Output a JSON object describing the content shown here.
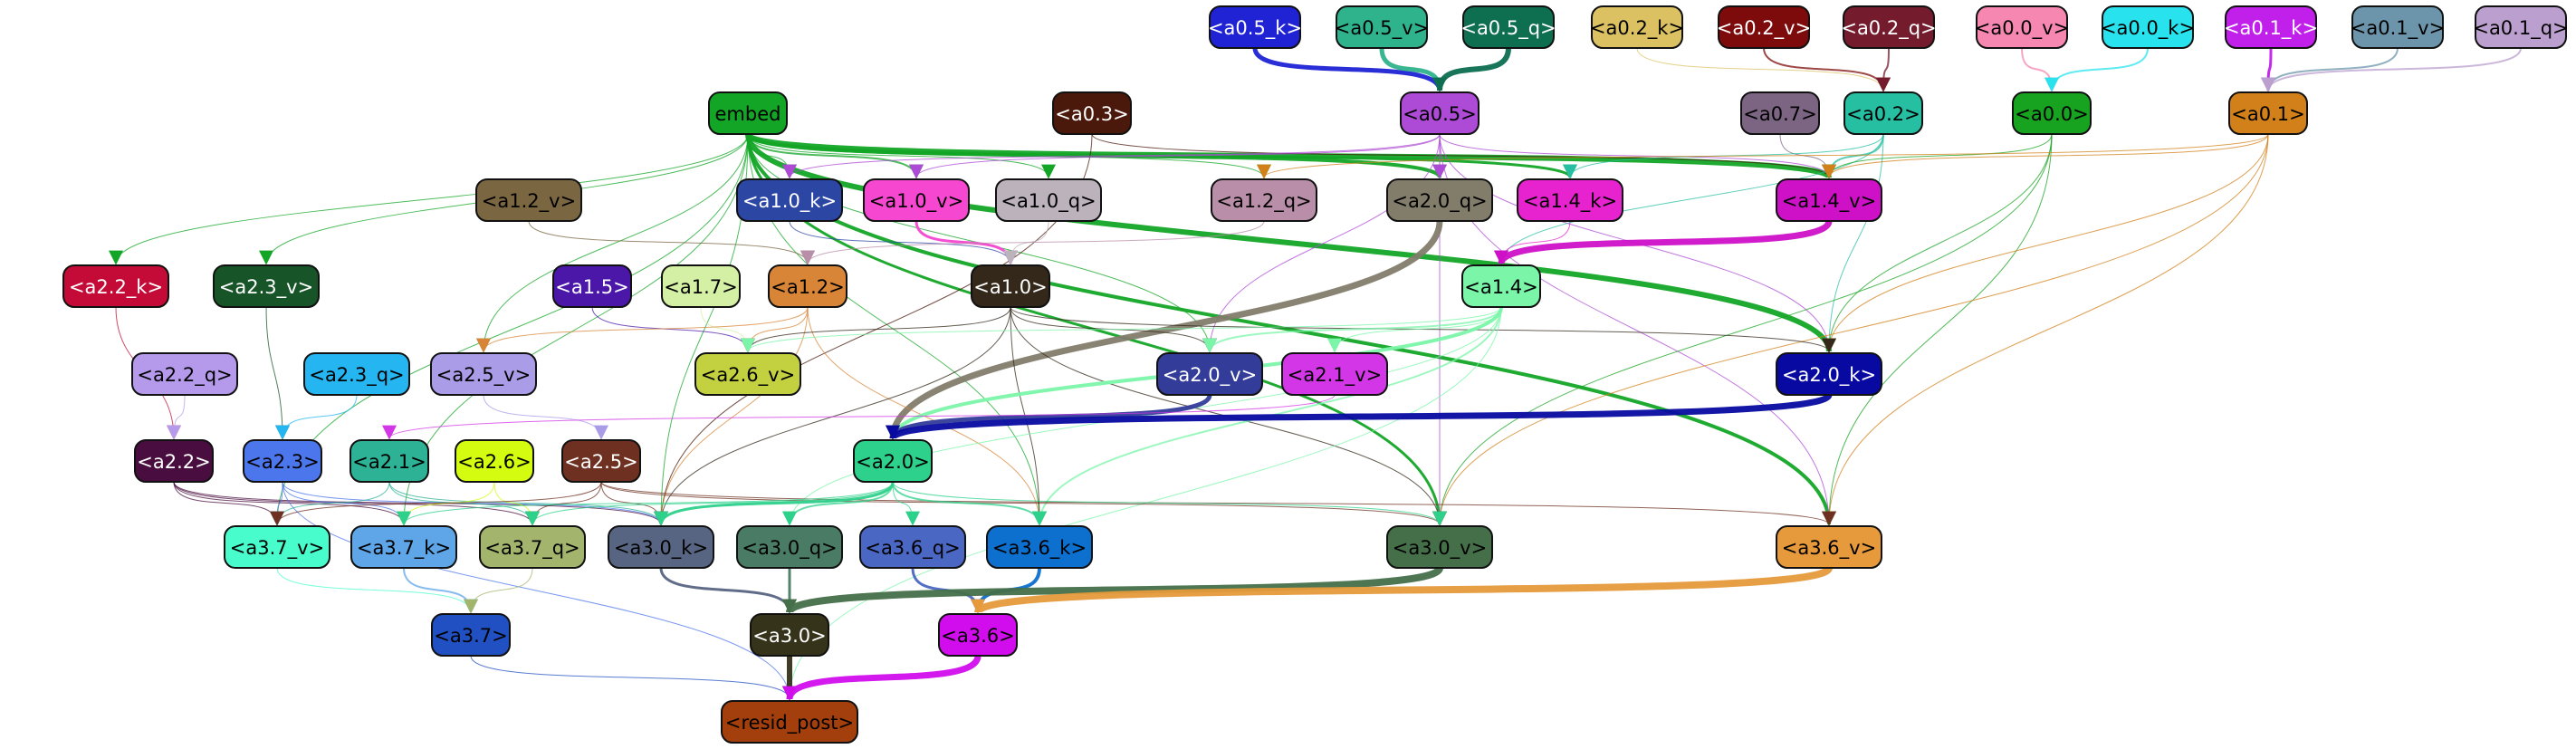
{
  "nodes": [
    {
      "id": "a0_5_k",
      "label": "<a0.5_k>",
      "fill": "#1f23d4",
      "text": "#ffffff"
    },
    {
      "id": "a0_5_v",
      "label": "<a0.5_v>",
      "fill": "#2fb38c",
      "text": "#000000"
    },
    {
      "id": "a0_5_q",
      "label": "<a0.5_q>",
      "fill": "#0d6e50",
      "text": "#ffffff"
    },
    {
      "id": "a0_2_k",
      "label": "<a0.2_k>",
      "fill": "#dcc163",
      "text": "#000000"
    },
    {
      "id": "a0_2_v",
      "label": "<a0.2_v>",
      "fill": "#7e0b0b",
      "text": "#ffffff"
    },
    {
      "id": "a0_2_q",
      "label": "<a0.2_q>",
      "fill": "#741c2e",
      "text": "#ffffff"
    },
    {
      "id": "a0_0_v",
      "label": "<a0.0_v>",
      "fill": "#f587b1",
      "text": "#000000"
    },
    {
      "id": "a0_0_k",
      "label": "<a0.0_k>",
      "fill": "#28e3ee",
      "text": "#000000"
    },
    {
      "id": "a0_1_k",
      "label": "<a0.1_k>",
      "fill": "#c120ea",
      "text": "#ffffff"
    },
    {
      "id": "a0_1_v",
      "label": "<a0.1_v>",
      "fill": "#6c95ab",
      "text": "#000000"
    },
    {
      "id": "a0_1_q",
      "label": "<a0.1_q>",
      "fill": "#bb9fcf",
      "text": "#000000"
    },
    {
      "id": "embed",
      "label": "embed",
      "fill": "#13a526",
      "text": "#000000"
    },
    {
      "id": "a0_3",
      "label": "<a0.3>",
      "fill": "#4a190b",
      "text": "#ffffff"
    },
    {
      "id": "a0_5",
      "label": "<a0.5>",
      "fill": "#ad4ad6",
      "text": "#000000"
    },
    {
      "id": "a0_7",
      "label": "<a0.7>",
      "fill": "#7b6583",
      "text": "#000000"
    },
    {
      "id": "a0_2",
      "label": "<a0.2>",
      "fill": "#26bfa2",
      "text": "#000000"
    },
    {
      "id": "a0_0",
      "label": "<a0.0>",
      "fill": "#17a320",
      "text": "#000000"
    },
    {
      "id": "a0_1",
      "label": "<a0.1>",
      "fill": "#d28019",
      "text": "#000000"
    },
    {
      "id": "a1_2_v",
      "label": "<a1.2_v>",
      "fill": "#7a6641",
      "text": "#000000"
    },
    {
      "id": "a1_0_k",
      "label": "<a1.0_k>",
      "fill": "#2c46a4",
      "text": "#ffffff"
    },
    {
      "id": "a1_0_v",
      "label": "<a1.0_v>",
      "fill": "#f647d0",
      "text": "#000000"
    },
    {
      "id": "a1_0_q",
      "label": "<a1.0_q>",
      "fill": "#bbb2bb",
      "text": "#000000"
    },
    {
      "id": "a1_2_q",
      "label": "<a1.2_q>",
      "fill": "#b98ea8",
      "text": "#000000"
    },
    {
      "id": "a2_0_q",
      "label": "<a2.0_q>",
      "fill": "#827c6a",
      "text": "#000000"
    },
    {
      "id": "a1_4_k",
      "label": "<a1.4_k>",
      "fill": "#e723cf",
      "text": "#000000"
    },
    {
      "id": "a1_4_v",
      "label": "<a1.4_v>",
      "fill": "#ce10c7",
      "text": "#000000"
    },
    {
      "id": "a2_2_k",
      "label": "<a2.2_k>",
      "fill": "#c40b37",
      "text": "#ffffff"
    },
    {
      "id": "a2_3_v",
      "label": "<a2.3_v>",
      "fill": "#175427",
      "text": "#ffffff"
    },
    {
      "id": "a1_5",
      "label": "<a1.5>",
      "fill": "#4b17a9",
      "text": "#ffffff"
    },
    {
      "id": "a1_7",
      "label": "<a1.7>",
      "fill": "#d4f0a4",
      "text": "#000000"
    },
    {
      "id": "a1_2",
      "label": "<a1.2>",
      "fill": "#d88538",
      "text": "#000000"
    },
    {
      "id": "a1_0",
      "label": "<a1.0>",
      "fill": "#33281a",
      "text": "#ffffff"
    },
    {
      "id": "a1_4",
      "label": "<a1.4>",
      "fill": "#7bf6a9",
      "text": "#000000"
    },
    {
      "id": "a2_2_q",
      "label": "<a2.2_q>",
      "fill": "#b59aeb",
      "text": "#000000"
    },
    {
      "id": "a2_3_q",
      "label": "<a2.3_q>",
      "fill": "#25b5f1",
      "text": "#000000"
    },
    {
      "id": "a2_5_v",
      "label": "<a2.5_v>",
      "fill": "#aa9ce7",
      "text": "#000000"
    },
    {
      "id": "a2_6_v",
      "label": "<a2.6_v>",
      "fill": "#c3d03f",
      "text": "#000000"
    },
    {
      "id": "a2_0_v",
      "label": "<a2.0_v>",
      "fill": "#333c99",
      "text": "#ffffff"
    },
    {
      "id": "a2_1_v",
      "label": "<a2.1_v>",
      "fill": "#d236e6",
      "text": "#000000"
    },
    {
      "id": "a2_0_k",
      "label": "<a2.0_k>",
      "fill": "#0709a1",
      "text": "#ffffff"
    },
    {
      "id": "a2_2",
      "label": "<a2.2>",
      "fill": "#4a0d3f",
      "text": "#ffffff"
    },
    {
      "id": "a2_3",
      "label": "<a2.3>",
      "fill": "#4c76ec",
      "text": "#000000"
    },
    {
      "id": "a2_1",
      "label": "<a2.1>",
      "fill": "#2db295",
      "text": "#000000"
    },
    {
      "id": "a2_6",
      "label": "<a2.6>",
      "fill": "#d4fc10",
      "text": "#000000"
    },
    {
      "id": "a2_5",
      "label": "<a2.5>",
      "fill": "#6e3020",
      "text": "#ffffff"
    },
    {
      "id": "a2_0",
      "label": "<a2.0>",
      "fill": "#2dd18b",
      "text": "#000000"
    },
    {
      "id": "a3_7_v",
      "label": "<a3.7_v>",
      "fill": "#48fccb",
      "text": "#000000"
    },
    {
      "id": "a3_7_k",
      "label": "<a3.7_k>",
      "fill": "#5ea6e8",
      "text": "#000000"
    },
    {
      "id": "a3_7_q",
      "label": "<a3.7_q>",
      "fill": "#a3b56c",
      "text": "#000000"
    },
    {
      "id": "a3_0_k",
      "label": "<a3.0_k>",
      "fill": "#586582",
      "text": "#000000"
    },
    {
      "id": "a3_0_q",
      "label": "<a3.0_q>",
      "fill": "#4a7c65",
      "text": "#000000"
    },
    {
      "id": "a3_6_q",
      "label": "<a3.6_q>",
      "fill": "#4a67c3",
      "text": "#000000"
    },
    {
      "id": "a3_6_k",
      "label": "<a3.6_k>",
      "fill": "#0d6fce",
      "text": "#000000"
    },
    {
      "id": "a3_0_v",
      "label": "<a3.0_v>",
      "fill": "#456f49",
      "text": "#000000"
    },
    {
      "id": "a3_6_v",
      "label": "<a3.6_v>",
      "fill": "#e69a3b",
      "text": "#000000"
    },
    {
      "id": "a3_7",
      "label": "<a3.7>",
      "fill": "#2050c2",
      "text": "#000000"
    },
    {
      "id": "a3_0",
      "label": "<a3.0>",
      "fill": "#36331b",
      "text": "#ffffff"
    },
    {
      "id": "a3_6",
      "label": "<a3.6>",
      "fill": "#d20ded",
      "text": "#000000"
    },
    {
      "id": "resid_post",
      "label": "<resid_post>",
      "fill": "#a33f0c",
      "text": "#000000"
    }
  ],
  "edges": [
    {
      "from": "a0_5_k",
      "to": "a0_5",
      "color": "#1f23d4",
      "weight": 5
    },
    {
      "from": "a0_5_v",
      "to": "a0_5",
      "color": "#2fb38c",
      "weight": 5
    },
    {
      "from": "a0_5_q",
      "to": "a0_5",
      "color": "#0d6e50",
      "weight": 6
    },
    {
      "from": "a0_2_k",
      "to": "a0_2",
      "color": "#dcc163",
      "weight": 1
    },
    {
      "from": "a0_2_v",
      "to": "a0_2",
      "color": "#7e0b0b",
      "weight": 2
    },
    {
      "from": "a0_2_q",
      "to": "a0_2",
      "color": "#741c2e",
      "weight": 2
    },
    {
      "from": "a0_0_v",
      "to": "a0_0",
      "color": "#f587b1",
      "weight": 2
    },
    {
      "from": "a0_0_k",
      "to": "a0_0",
      "color": "#28e3ee",
      "weight": 2
    },
    {
      "from": "a0_1_k",
      "to": "a0_1",
      "color": "#c120ea",
      "weight": 3
    },
    {
      "from": "a0_1_v",
      "to": "a0_1",
      "color": "#6c95ab",
      "weight": 2
    },
    {
      "from": "a0_1_q",
      "to": "a0_1",
      "color": "#bb9fcf",
      "weight": 2
    },
    {
      "from": "embed",
      "to": "a1_4_v",
      "color": "#13a526",
      "weight": 6
    },
    {
      "from": "embed",
      "to": "a2_0_k",
      "color": "#13a526",
      "weight": 6
    },
    {
      "from": "embed",
      "to": "a2_0_q",
      "color": "#13a526",
      "weight": 4
    },
    {
      "from": "embed",
      "to": "a1_4_k",
      "color": "#13a526",
      "weight": 3
    },
    {
      "from": "embed",
      "to": "a3_6_v",
      "color": "#13a526",
      "weight": 4
    },
    {
      "from": "embed",
      "to": "a3_0_v",
      "color": "#13a526",
      "weight": 3
    },
    {
      "from": "embed",
      "to": "a1_0_k",
      "color": "#13a526",
      "weight": 1
    },
    {
      "from": "embed",
      "to": "a1_0_v",
      "color": "#13a526",
      "weight": 2
    },
    {
      "from": "embed",
      "to": "a1_0_q",
      "color": "#13a526",
      "weight": 1
    },
    {
      "from": "embed",
      "to": "a1_2_q",
      "color": "#13a526",
      "weight": 1
    },
    {
      "from": "embed",
      "to": "a2_2_k",
      "color": "#13a526",
      "weight": 1
    },
    {
      "from": "embed",
      "to": "a2_3_v",
      "color": "#13a526",
      "weight": 1
    },
    {
      "from": "embed",
      "to": "a2_5_v",
      "color": "#13a526",
      "weight": 1
    },
    {
      "from": "embed",
      "to": "a3_7_v",
      "color": "#13a526",
      "weight": 1
    },
    {
      "from": "embed",
      "to": "a3_7_k",
      "color": "#13a526",
      "weight": 1
    },
    {
      "from": "embed",
      "to": "a3_0_k",
      "color": "#13a526",
      "weight": 1
    },
    {
      "from": "embed",
      "to": "a3_6_k",
      "color": "#13a526",
      "weight": 1
    },
    {
      "from": "embed",
      "to": "a2_0_v",
      "color": "#13a526",
      "weight": 1
    },
    {
      "from": "a0_3",
      "to": "a1_4_v",
      "color": "#4a190b",
      "weight": 1
    },
    {
      "from": "a0_3",
      "to": "a3_0_k",
      "color": "#4a190b",
      "weight": 1
    },
    {
      "from": "a0_5",
      "to": "a1_4_v",
      "color": "#ad4ad6",
      "weight": 1
    },
    {
      "from": "a0_5",
      "to": "a2_0_k",
      "color": "#ad4ad6",
      "weight": 1
    },
    {
      "from": "a0_5",
      "to": "a1_0_v",
      "color": "#ad4ad6",
      "weight": 1
    },
    {
      "from": "a0_5",
      "to": "a1_0_k",
      "color": "#ad4ad6",
      "weight": 1
    },
    {
      "from": "a0_5",
      "to": "a2_0_q",
      "color": "#ad4ad6",
      "weight": 1
    },
    {
      "from": "a0_5",
      "to": "a2_0_v",
      "color": "#ad4ad6",
      "weight": 1
    },
    {
      "from": "a0_5",
      "to": "a3_0_v",
      "color": "#ad4ad6",
      "weight": 1
    },
    {
      "from": "a0_5",
      "to": "a3_6_v",
      "color": "#ad4ad6",
      "weight": 1
    },
    {
      "from": "a0_7",
      "to": "a1_4_v",
      "color": "#7b6583",
      "weight": 1
    },
    {
      "from": "a0_2",
      "to": "a1_4_v",
      "color": "#26bfa2",
      "weight": 2
    },
    {
      "from": "a0_2",
      "to": "a1_4_k",
      "color": "#26bfa2",
      "weight": 1
    },
    {
      "from": "a0_2",
      "to": "a2_0_k",
      "color": "#26bfa2",
      "weight": 1
    },
    {
      "from": "a0_2",
      "to": "a1_4",
      "color": "#26bfa2",
      "weight": 1
    },
    {
      "from": "a0_0",
      "to": "a1_4_v",
      "color": "#17a320",
      "weight": 1
    },
    {
      "from": "a0_0",
      "to": "a2_0_k",
      "color": "#17a320",
      "weight": 1
    },
    {
      "from": "a0_0",
      "to": "a3_6_v",
      "color": "#17a320",
      "weight": 1
    },
    {
      "from": "a0_0",
      "to": "a3_0_v",
      "color": "#17a320",
      "weight": 1
    },
    {
      "from": "a0_1",
      "to": "a1_4_v",
      "color": "#d28019",
      "weight": 1
    },
    {
      "from": "a0_1",
      "to": "a2_0_k",
      "color": "#d28019",
      "weight": 1
    },
    {
      "from": "a0_1",
      "to": "a3_6_v",
      "color": "#d28019",
      "weight": 1
    },
    {
      "from": "a0_1",
      "to": "a3_0_v",
      "color": "#d28019",
      "weight": 1
    },
    {
      "from": "a0_1",
      "to": "a1_2_q",
      "color": "#d28019",
      "weight": 1
    },
    {
      "from": "a1_2_v",
      "to": "a1_2",
      "color": "#7a6641",
      "weight": 1
    },
    {
      "from": "a1_0_k",
      "to": "a1_0",
      "color": "#2c46a4",
      "weight": 1
    },
    {
      "from": "a1_0_v",
      "to": "a1_0",
      "color": "#f647d0",
      "weight": 3
    },
    {
      "from": "a1_0_q",
      "to": "a1_0",
      "color": "#bbb2bb",
      "weight": 1
    },
    {
      "from": "a1_2_q",
      "to": "a1_2",
      "color": "#b98ea8",
      "weight": 1
    },
    {
      "from": "a2_0_q",
      "to": "a2_0",
      "color": "#827c6a",
      "weight": 7
    },
    {
      "from": "a1_4_k",
      "to": "a1_4",
      "color": "#e723cf",
      "weight": 1
    },
    {
      "from": "a1_4_v",
      "to": "a1_4",
      "color": "#ce10c7",
      "weight": 7
    },
    {
      "from": "a2_2_k",
      "to": "a2_2",
      "color": "#c40b37",
      "weight": 1
    },
    {
      "from": "a2_3_v",
      "to": "a2_3",
      "color": "#175427",
      "weight": 1
    },
    {
      "from": "a1_5",
      "to": "a2_6_v",
      "color": "#4b17a9",
      "weight": 1
    },
    {
      "from": "a1_7",
      "to": "a2_6_v",
      "color": "#d4f0a4",
      "weight": 1
    },
    {
      "from": "a1_2",
      "to": "a2_6_v",
      "color": "#d88538",
      "weight": 1
    },
    {
      "from": "a1_2",
      "to": "a2_5_v",
      "color": "#d88538",
      "weight": 1
    },
    {
      "from": "a1_2",
      "to": "a3_6_k",
      "color": "#d88538",
      "weight": 1
    },
    {
      "from": "a1_2",
      "to": "a3_0_k",
      "color": "#d88538",
      "weight": 1
    },
    {
      "from": "a1_0",
      "to": "a2_0_v",
      "color": "#33281a",
      "weight": 1
    },
    {
      "from": "a1_0",
      "to": "a2_0_k",
      "color": "#33281a",
      "weight": 1
    },
    {
      "from": "a1_0",
      "to": "a2_6_v",
      "color": "#33281a",
      "weight": 1
    },
    {
      "from": "a1_0",
      "to": "a3_0_v",
      "color": "#33281a",
      "weight": 1
    },
    {
      "from": "a1_0",
      "to": "a3_6_k",
      "color": "#33281a",
      "weight": 1
    },
    {
      "from": "a1_0",
      "to": "a3_0_k",
      "color": "#33281a",
      "weight": 1
    },
    {
      "from": "a1_4",
      "to": "a2_0_v",
      "color": "#7bf6a9",
      "weight": 2
    },
    {
      "from": "a1_4",
      "to": "a2_0",
      "color": "#7bf6a9",
      "weight": 4
    },
    {
      "from": "a1_4",
      "to": "a2_1_v",
      "color": "#7bf6a9",
      "weight": 1
    },
    {
      "from": "a1_4",
      "to": "a2_6_v",
      "color": "#7bf6a9",
      "weight": 1
    },
    {
      "from": "a1_4",
      "to": "a3_6_k",
      "color": "#7bf6a9",
      "weight": 2
    },
    {
      "from": "a1_4",
      "to": "a3_0_q",
      "color": "#7bf6a9",
      "weight": 1
    },
    {
      "from": "a1_4",
      "to": "resid_post",
      "color": "#7bf6a9",
      "weight": 1
    },
    {
      "from": "a2_2_q",
      "to": "a2_2",
      "color": "#b59aeb",
      "weight": 1
    },
    {
      "from": "a2_3_q",
      "to": "a2_3",
      "color": "#25b5f1",
      "weight": 1
    },
    {
      "from": "a2_5_v",
      "to": "a2_5",
      "color": "#aa9ce7",
      "weight": 1
    },
    {
      "from": "a2_0_v",
      "to": "a2_0",
      "color": "#333c99",
      "weight": 5
    },
    {
      "from": "a2_1_v",
      "to": "a2_1",
      "color": "#d236e6",
      "weight": 1
    },
    {
      "from": "a2_0_k",
      "to": "a2_0",
      "color": "#0709a1",
      "weight": 7
    },
    {
      "from": "a2_2",
      "to": "a3_7_v",
      "color": "#4a0d3f",
      "weight": 1
    },
    {
      "from": "a2_2",
      "to": "a3_7_q",
      "color": "#4a0d3f",
      "weight": 1
    },
    {
      "from": "a2_2",
      "to": "a3_0_k",
      "color": "#4a0d3f",
      "weight": 1
    },
    {
      "from": "a2_2",
      "to": "a3_7_k",
      "color": "#4a0d3f",
      "weight": 1
    },
    {
      "from": "a2_3",
      "to": "a3_7_v",
      "color": "#4c76ec",
      "weight": 1
    },
    {
      "from": "a2_3",
      "to": "a3_7_k",
      "color": "#4c76ec",
      "weight": 1
    },
    {
      "from": "a2_3",
      "to": "a3_0_k",
      "color": "#4c76ec",
      "weight": 1
    },
    {
      "from": "a2_3",
      "to": "resid_post",
      "color": "#4c76ec",
      "weight": 1
    },
    {
      "from": "a2_1",
      "to": "a3_7_v",
      "color": "#2db295",
      "weight": 1
    },
    {
      "from": "a2_1",
      "to": "a3_0_k",
      "color": "#2db295",
      "weight": 1
    },
    {
      "from": "a2_1",
      "to": "a3_7_q",
      "color": "#2db295",
      "weight": 1
    },
    {
      "from": "a2_6",
      "to": "a3_7_k",
      "color": "#d4fc10",
      "weight": 1
    },
    {
      "from": "a2_6",
      "to": "a3_7_q",
      "color": "#d4fc10",
      "weight": 1
    },
    {
      "from": "a2_5",
      "to": "a3_7_v",
      "color": "#6e3020",
      "weight": 1
    },
    {
      "from": "a2_5",
      "to": "a3_7_q",
      "color": "#6e3020",
      "weight": 1
    },
    {
      "from": "a2_5",
      "to": "a3_0_k",
      "color": "#6e3020",
      "weight": 1
    },
    {
      "from": "a2_5",
      "to": "a3_6_v",
      "color": "#6e3020",
      "weight": 1
    },
    {
      "from": "a2_5",
      "to": "a3_0_v",
      "color": "#6e3020",
      "weight": 1
    },
    {
      "from": "a2_0",
      "to": "a3_0_k",
      "color": "#2dd18b",
      "weight": 3
    },
    {
      "from": "a2_0",
      "to": "a3_0_q",
      "color": "#2dd18b",
      "weight": 2
    },
    {
      "from": "a2_0",
      "to": "a3_6_q",
      "color": "#2dd18b",
      "weight": 1
    },
    {
      "from": "a2_0",
      "to": "a3_6_k",
      "color": "#2dd18b",
      "weight": 2
    },
    {
      "from": "a2_0",
      "to": "a3_0_v",
      "color": "#2dd18b",
      "weight": 1
    },
    {
      "from": "a2_0",
      "to": "a3_7_q",
      "color": "#2dd18b",
      "weight": 1
    },
    {
      "from": "a2_0",
      "to": "a3_7_k",
      "color": "#2dd18b",
      "weight": 1
    },
    {
      "from": "a3_7_v",
      "to": "a3_7",
      "color": "#48fccb",
      "weight": 1
    },
    {
      "from": "a3_7_k",
      "to": "a3_7",
      "color": "#5ea6e8",
      "weight": 2
    },
    {
      "from": "a3_7_q",
      "to": "a3_7",
      "color": "#a3b56c",
      "weight": 1
    },
    {
      "from": "a3_0_k",
      "to": "a3_0",
      "color": "#586582",
      "weight": 3
    },
    {
      "from": "a3_0_q",
      "to": "a3_0",
      "color": "#4a7c65",
      "weight": 3
    },
    {
      "from": "a3_6_q",
      "to": "a3_6",
      "color": "#4a67c3",
      "weight": 3
    },
    {
      "from": "a3_6_k",
      "to": "a3_6",
      "color": "#0d6fce",
      "weight": 4
    },
    {
      "from": "a3_0_v",
      "to": "a3_0",
      "color": "#456f49",
      "weight": 8
    },
    {
      "from": "a3_6_v",
      "to": "a3_6",
      "color": "#e69a3b",
      "weight": 8
    },
    {
      "from": "a3_7",
      "to": "resid_post",
      "color": "#2050c2",
      "weight": 1
    },
    {
      "from": "a3_0",
      "to": "resid_post",
      "color": "#36331b",
      "weight": 6
    },
    {
      "from": "a3_6",
      "to": "resid_post",
      "color": "#d20ded",
      "weight": 7
    }
  ]
}
